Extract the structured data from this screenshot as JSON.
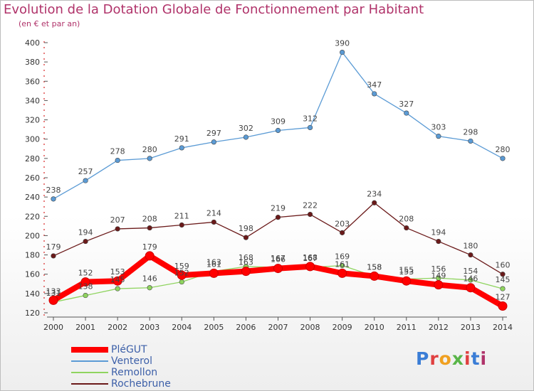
{
  "header": {
    "title": "Evolution de la Dotation Globale de Fonctionnement par Habitant",
    "subtitle": "(en € et par an)"
  },
  "logo": {
    "text": "Proxiti",
    "colors": [
      "#3a7dd6",
      "#e04040",
      "#f0a020",
      "#59b548",
      "#e04040",
      "#3a7dd6",
      "#b0336a"
    ]
  },
  "chart_data": {
    "type": "line",
    "x": [
      "2000",
      "2001",
      "2002",
      "2003",
      "2004",
      "2005",
      "2006",
      "2007",
      "2008",
      "2009",
      "2010",
      "2011",
      "2012",
      "2013",
      "2014"
    ],
    "ylim": [
      120,
      400
    ],
    "yticks": [
      120,
      140,
      160,
      180,
      200,
      220,
      240,
      260,
      280,
      300,
      320,
      340,
      360,
      380,
      400
    ],
    "grid": false,
    "legend_position": "bottom-left",
    "series": [
      {
        "name": "Rochebrune",
        "color": "#6b1a1a",
        "values": [
          179,
          194,
          207,
          208,
          211,
          214,
          198,
          219,
          222,
          203,
          234,
          208,
          194,
          180,
          160
        ]
      },
      {
        "name": "Remollon",
        "color": "#8fd45f",
        "values": [
          131,
          138,
          145,
          146,
          152,
          163,
          168,
          167,
          167,
          169,
          158,
          155,
          156,
          154,
          145
        ]
      },
      {
        "name": "Venterol",
        "color": "#5b9bd5",
        "values": [
          238,
          257,
          278,
          280,
          291,
          297,
          302,
          309,
          312,
          390,
          347,
          327,
          303,
          298,
          280
        ]
      },
      {
        "name": "PléGUT",
        "color": "#ff0000",
        "values": [
          133,
          152,
          153,
          179,
          159,
          161,
          163,
          166,
          168,
          161,
          158,
          153,
          149,
          146,
          127
        ]
      }
    ],
    "legend_order": [
      "PléGUT",
      "Venterol",
      "Remollon",
      "Rochebrune"
    ]
  }
}
